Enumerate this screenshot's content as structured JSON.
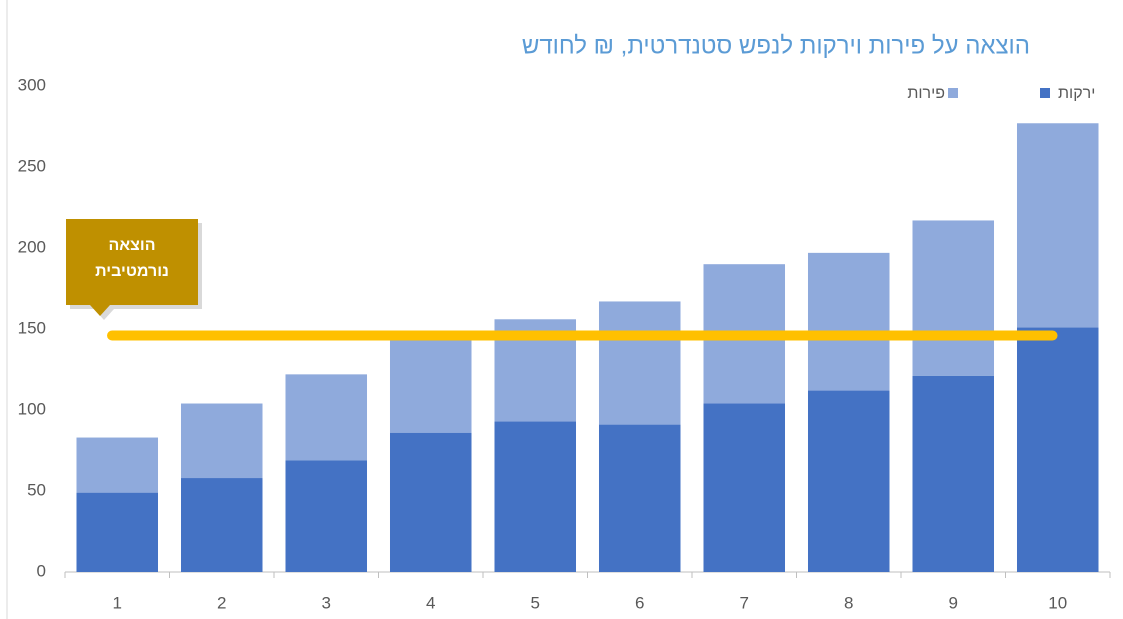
{
  "chart_data": {
    "type": "stacked_bar",
    "title": "הוצאה על פירות וירקות לנפש סטנדרטית, ₪ לחודש",
    "categories": [
      "1",
      "2",
      "3",
      "4",
      "5",
      "6",
      "7",
      "8",
      "9",
      "10"
    ],
    "series": [
      {
        "name": "ירקות",
        "color": "#4472c4",
        "values": [
          49,
          58,
          69,
          86,
          93,
          91,
          104,
          112,
          121,
          151
        ]
      },
      {
        "name": "פירות",
        "color": "#8faadc",
        "values": [
          34,
          46,
          53,
          58,
          63,
          76,
          86,
          85,
          96,
          126
        ]
      }
    ],
    "ylim": [
      0,
      300
    ],
    "yticks": [
      0,
      50,
      100,
      150,
      200,
      250,
      300
    ],
    "reference_line": {
      "value": 146,
      "color": "#ffc000",
      "label_lines": [
        "הוצאה",
        "נורמטיבית"
      ],
      "label_color": "#bf9000"
    }
  }
}
